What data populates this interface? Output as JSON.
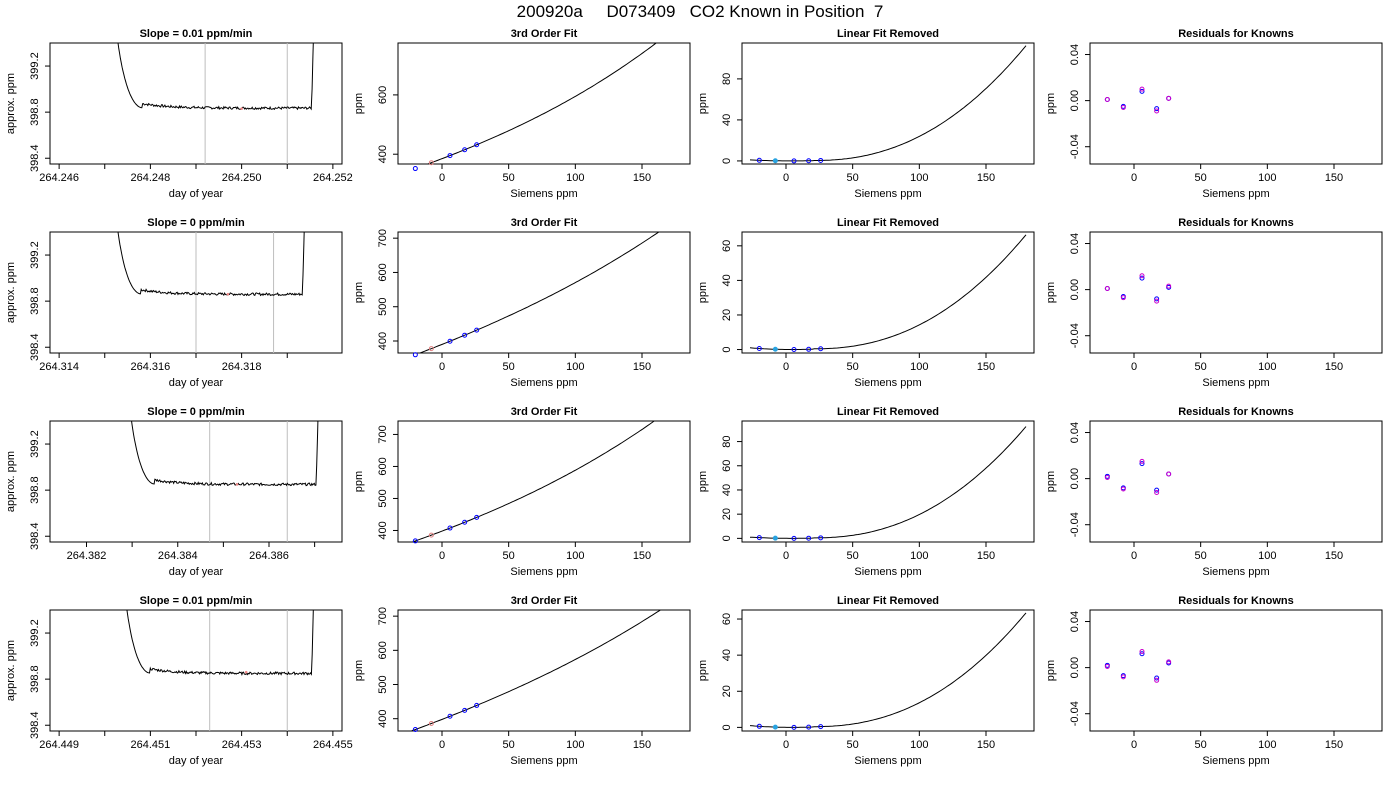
{
  "page_title": "200920a     D073409   CO2 Known in Position  7",
  "colors": {
    "axis": "#000000",
    "curve": "#000000",
    "grey_line": "#bebebe",
    "known_point": "#0000ff",
    "known_point_inner": "#cc3333",
    "highlight_point": "#29a3e0",
    "residual_point_a": "#0000ff",
    "residual_point_b": "#cc00cc"
  },
  "chart_data": [
    {
      "row": 1,
      "type": "line",
      "title": "Slope =  0.01  ppm/min",
      "xlabel": "day of year",
      "ylabel": "approx. ppm",
      "xlim": [
        264.2458,
        264.2522
      ],
      "ylim": [
        398.35,
        399.4
      ],
      "xticks": [
        "264.246",
        "264.248",
        "264.250",
        "264.252"
      ],
      "xtick_values": [
        264.246,
        264.248,
        264.25,
        264.252
      ],
      "xticks_minor": [
        264.247,
        264.249,
        264.251
      ],
      "yticks": [
        "398.4",
        "398.8",
        "399.2"
      ],
      "ytick_values": [
        398.4,
        398.8,
        399.2
      ],
      "vlines": [
        264.2492,
        264.251
      ],
      "plateau": 398.835,
      "drop_start": 264.2471,
      "rise_end": 264.2516,
      "flagged_point": [
        264.25,
        398.83
      ]
    },
    {
      "row": 1,
      "type": "line",
      "title": "3rd Order Fit",
      "xlabel": "Siemens ppm",
      "ylabel": "ppm",
      "xlim": [
        -33,
        186
      ],
      "ylim": [
        367,
        775
      ],
      "xticks": [
        "0",
        "50",
        "100",
        "150"
      ],
      "xtick_values": [
        0,
        50,
        100,
        150
      ],
      "yticks": [
        "400",
        "600"
      ],
      "ytick_values": [
        400,
        600
      ],
      "curve": {
        "x0": 385,
        "a": 1.72,
        "b": 0.0028,
        "c": 1e-05,
        "from": -27,
        "to": 180
      },
      "points_x": [
        -20,
        -8,
        6,
        17,
        26
      ],
      "highlight_index": 1
    },
    {
      "row": 1,
      "type": "line",
      "title": "Linear Fit Removed",
      "xlabel": "Siemens ppm",
      "ylabel": "ppm",
      "xlim": [
        -33,
        186
      ],
      "ylim": [
        -3,
        115
      ],
      "xticks": [
        "0",
        "50",
        "100",
        "150"
      ],
      "xtick_values": [
        0,
        50,
        100,
        150
      ],
      "yticks": [
        "0",
        "40",
        "80"
      ],
      "ytick_values": [
        0,
        40,
        80
      ],
      "curve_peak": 112,
      "points_x": [
        -20,
        -8,
        6,
        17,
        26
      ],
      "highlight_index": 1
    },
    {
      "row": 1,
      "type": "scatter",
      "title": "Residuals for Knowns",
      "xlabel": "Siemens ppm",
      "ylabel": "ppm",
      "xlim": [
        -33,
        186
      ],
      "ylim": [
        -0.055,
        0.05
      ],
      "xticks": [
        "0",
        "50",
        "100",
        "150"
      ],
      "xtick_values": [
        0,
        50,
        100,
        150
      ],
      "yticks": [
        "-0.04",
        "0.00",
        "0.04"
      ],
      "ytick_values": [
        -0.04,
        0.0,
        0.04
      ],
      "x": [
        -20,
        -8,
        6,
        17,
        26
      ],
      "y_a": [
        0.001,
        -0.005,
        0.008,
        -0.007,
        0.002
      ],
      "y_b": [
        0.001,
        -0.006,
        0.01,
        -0.009,
        0.002
      ]
    },
    {
      "row": 2,
      "type": "line",
      "title": "Slope =  0  ppm/min",
      "xlabel": "day of year",
      "ylabel": "approx. ppm",
      "xlim": [
        264.3138,
        264.3202
      ],
      "ylim": [
        398.35,
        399.4
      ],
      "xticks": [
        "264.314",
        "264.316",
        "264.318"
      ],
      "xtick_values": [
        264.314,
        264.316,
        264.318
      ],
      "xticks_minor": [
        264.315,
        264.317,
        264.319
      ],
      "yticks": [
        "398.4",
        "398.8",
        "399.2"
      ],
      "ytick_values": [
        398.4,
        398.8,
        399.2
      ],
      "vlines": [
        264.317,
        264.3187
      ],
      "plateau": 398.86,
      "drop_start": 264.3151,
      "rise_end": 264.3194,
      "flagged_point": [
        264.3177,
        398.86
      ]
    },
    {
      "row": 2,
      "type": "line",
      "title": "3rd Order Fit",
      "xlabel": "Siemens ppm",
      "ylabel": "ppm",
      "xlim": [
        -33,
        186
      ],
      "ylim": [
        365,
        718
      ],
      "xticks": [
        "0",
        "50",
        "100",
        "150"
      ],
      "xtick_values": [
        0,
        50,
        100,
        150
      ],
      "yticks": [
        "400",
        "500",
        "600",
        "700"
      ],
      "ytick_values": [
        400,
        500,
        600,
        700
      ],
      "curve": {
        "x0": 390,
        "a": 1.55,
        "b": 0.002,
        "c": 5.4e-06,
        "from": -27,
        "to": 180
      },
      "points_x": [
        -20,
        -8,
        6,
        17,
        26
      ],
      "highlight_index": 1
    },
    {
      "row": 2,
      "type": "line",
      "title": "Linear Fit Removed",
      "xlabel": "Siemens ppm",
      "ylabel": "ppm",
      "xlim": [
        -33,
        186
      ],
      "ylim": [
        -2,
        68
      ],
      "xticks": [
        "0",
        "50",
        "100",
        "150"
      ],
      "xtick_values": [
        0,
        50,
        100,
        150
      ],
      "yticks": [
        "0",
        "20",
        "40",
        "60"
      ],
      "ytick_values": [
        0,
        20,
        40,
        60
      ],
      "curve_peak": 66,
      "points_x": [
        -20,
        -8,
        6,
        17,
        26
      ],
      "highlight_index": 1
    },
    {
      "row": 2,
      "type": "scatter",
      "title": "Residuals for Knowns",
      "xlabel": "Siemens ppm",
      "ylabel": "ppm",
      "xlim": [
        -33,
        186
      ],
      "ylim": [
        -0.055,
        0.05
      ],
      "xticks": [
        "0",
        "50",
        "100",
        "150"
      ],
      "xtick_values": [
        0,
        50,
        100,
        150
      ],
      "yticks": [
        "-0.04",
        "0.00",
        "0.04"
      ],
      "ytick_values": [
        -0.04,
        0.0,
        0.04
      ],
      "x": [
        -20,
        -8,
        6,
        17,
        26
      ],
      "y_a": [
        0.001,
        -0.006,
        0.01,
        -0.008,
        0.002
      ],
      "y_b": [
        0.001,
        -0.007,
        0.012,
        -0.01,
        0.003
      ]
    },
    {
      "row": 3,
      "type": "line",
      "title": "Slope =  0  ppm/min",
      "xlabel": "day of year",
      "ylabel": "approx. ppm",
      "xlim": [
        264.3812,
        264.3876
      ],
      "ylim": [
        398.35,
        399.4
      ],
      "xticks": [
        "264.382",
        "264.384",
        "264.386"
      ],
      "xtick_values": [
        264.382,
        264.384,
        264.386
      ],
      "xticks_minor": [
        264.383,
        264.385,
        264.387
      ],
      "yticks": [
        "398.4",
        "398.8",
        "399.2"
      ],
      "ytick_values": [
        398.4,
        398.8,
        399.2
      ],
      "vlines": [
        264.3847,
        264.3864
      ],
      "plateau": 398.85,
      "drop_start": 264.3828,
      "rise_end": 264.3871,
      "flagged_point": [
        264.3853,
        398.85
      ]
    },
    {
      "row": 3,
      "type": "line",
      "title": "3rd Order Fit",
      "xlabel": "Siemens ppm",
      "ylabel": "ppm",
      "xlim": [
        -33,
        186
      ],
      "ylim": [
        364,
        742
      ],
      "xticks": [
        "0",
        "50",
        "100",
        "150"
      ],
      "xtick_values": [
        0,
        50,
        100,
        150
      ],
      "yticks": [
        "400",
        "500",
        "600",
        "700"
      ],
      "ytick_values": [
        400,
        500,
        600,
        700
      ],
      "curve": {
        "x0": 398,
        "a": 1.58,
        "b": 0.0025,
        "c": 7.2e-06,
        "from": -27,
        "to": 180
      },
      "points_x": [
        -20,
        -8,
        6,
        17,
        26
      ],
      "highlight_index": 1
    },
    {
      "row": 3,
      "type": "line",
      "title": "Linear Fit Removed",
      "xlabel": "Siemens ppm",
      "ylabel": "ppm",
      "xlim": [
        -33,
        186
      ],
      "ylim": [
        -3,
        97
      ],
      "xticks": [
        "0",
        "50",
        "100",
        "150"
      ],
      "xtick_values": [
        0,
        50,
        100,
        150
      ],
      "yticks": [
        "0",
        "20",
        "40",
        "60",
        "80"
      ],
      "ytick_values": [
        0,
        20,
        40,
        60,
        80
      ],
      "curve_peak": 92,
      "points_x": [
        -20,
        -8,
        6,
        17,
        26
      ],
      "highlight_index": 1
    },
    {
      "row": 3,
      "type": "scatter",
      "title": "Residuals for Knowns",
      "xlabel": "Siemens ppm",
      "ylabel": "ppm",
      "xlim": [
        -33,
        186
      ],
      "ylim": [
        -0.055,
        0.05
      ],
      "xticks": [
        "0",
        "50",
        "100",
        "150"
      ],
      "xtick_values": [
        0,
        50,
        100,
        150
      ],
      "yticks": [
        "-0.04",
        "0.00",
        "0.04"
      ],
      "ytick_values": [
        -0.04,
        0.0,
        0.04
      ],
      "x": [
        -20,
        -8,
        6,
        17,
        26
      ],
      "y_a": [
        0.002,
        -0.008,
        0.013,
        -0.01,
        0.004
      ],
      "y_b": [
        0.001,
        -0.009,
        0.015,
        -0.012,
        0.004
      ]
    },
    {
      "row": 4,
      "type": "line",
      "title": "Slope =  0.01  ppm/min",
      "xlabel": "day of year",
      "ylabel": "approx. ppm",
      "xlim": [
        264.4488,
        264.4552
      ],
      "ylim": [
        398.35,
        399.4
      ],
      "xticks": [
        "264.449",
        "264.451",
        "264.453",
        "264.455"
      ],
      "xtick_values": [
        264.449,
        264.451,
        264.453,
        264.455
      ],
      "xticks_minor": [
        264.45,
        264.452,
        264.454
      ],
      "yticks": [
        "398.4",
        "398.8",
        "399.2"
      ],
      "ytick_values": [
        398.4,
        398.8,
        399.2
      ],
      "vlines": [
        264.4523,
        264.454
      ],
      "plateau": 398.85,
      "drop_start": 264.4503,
      "rise_end": 264.4546,
      "flagged_point": [
        264.4531,
        398.86
      ]
    },
    {
      "row": 4,
      "type": "line",
      "title": "3rd Order Fit",
      "xlabel": "Siemens ppm",
      "ylabel": "ppm",
      "xlim": [
        -33,
        186
      ],
      "ylim": [
        364,
        718
      ],
      "xticks": [
        "0",
        "50",
        "100",
        "150"
      ],
      "xtick_values": [
        0,
        50,
        100,
        150
      ],
      "yticks": [
        "400",
        "500",
        "600",
        "700"
      ],
      "ytick_values": [
        400,
        500,
        600,
        700
      ],
      "curve": {
        "x0": 398,
        "a": 1.52,
        "b": 0.0018,
        "c": 5.2e-06,
        "from": -27,
        "to": 180
      },
      "points_x": [
        -20,
        -8,
        6,
        17,
        26
      ],
      "highlight_index": 1
    },
    {
      "row": 4,
      "type": "line",
      "title": "Linear Fit Removed",
      "xlabel": "Siemens ppm",
      "ylabel": "ppm",
      "xlim": [
        -33,
        186
      ],
      "ylim": [
        -2,
        65
      ],
      "xticks": [
        "0",
        "50",
        "100",
        "150"
      ],
      "xtick_values": [
        0,
        50,
        100,
        150
      ],
      "yticks": [
        "0",
        "20",
        "40",
        "60"
      ],
      "ytick_values": [
        0,
        20,
        40,
        60
      ],
      "curve_peak": 63,
      "points_x": [
        -20,
        -8,
        6,
        17,
        26
      ],
      "highlight_index": 1
    },
    {
      "row": 4,
      "type": "scatter",
      "title": "Residuals for Knowns",
      "xlabel": "Siemens ppm",
      "ylabel": "ppm",
      "xlim": [
        -33,
        186
      ],
      "ylim": [
        -0.055,
        0.05
      ],
      "xticks": [
        "0",
        "50",
        "100",
        "150"
      ],
      "xtick_values": [
        0,
        50,
        100,
        150
      ],
      "yticks": [
        "-0.04",
        "0.00",
        "0.04"
      ],
      "ytick_values": [
        -0.04,
        0.0,
        0.04
      ],
      "x": [
        -20,
        -8,
        6,
        17,
        26
      ],
      "y_a": [
        0.002,
        -0.007,
        0.012,
        -0.009,
        0.004
      ],
      "y_b": [
        0.001,
        -0.008,
        0.014,
        -0.011,
        0.005
      ]
    }
  ]
}
